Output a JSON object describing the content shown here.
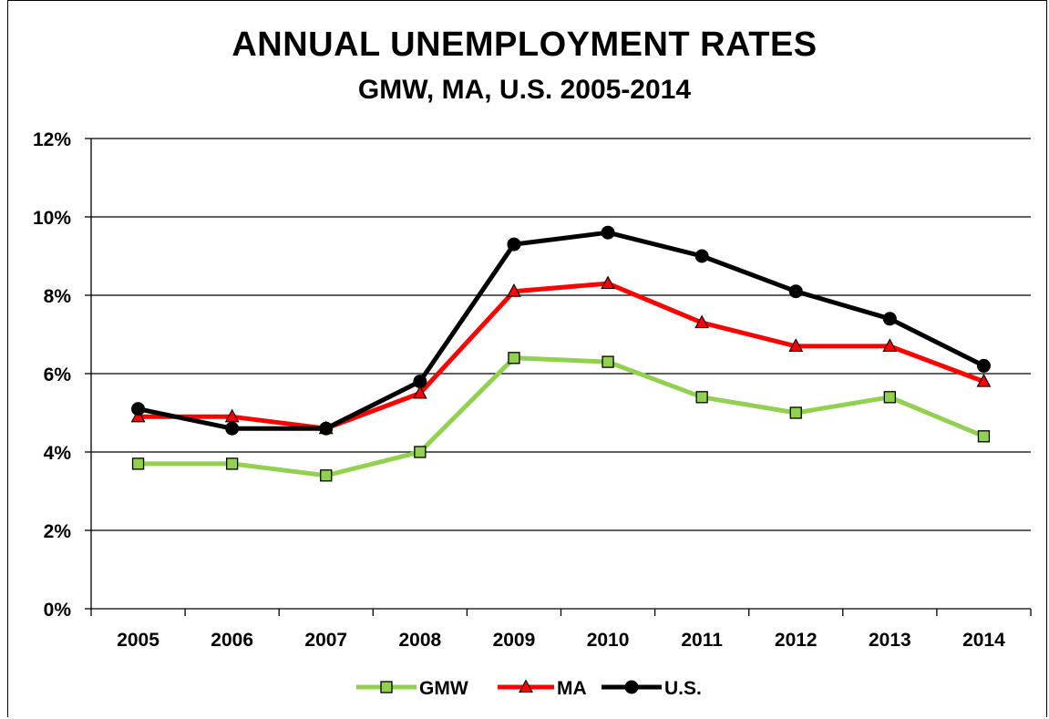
{
  "chart_data": {
    "type": "line",
    "title": "ANNUAL UNEMPLOYMENT RATES",
    "subtitle": "GMW, MA, U.S. 2005-2014",
    "categories": [
      "2005",
      "2006",
      "2007",
      "2008",
      "2009",
      "2010",
      "2011",
      "2012",
      "2013",
      "2014"
    ],
    "ylim": [
      0,
      12
    ],
    "yticks": [
      0,
      2,
      4,
      6,
      8,
      10,
      12
    ],
    "ytick_labels": [
      "0%",
      "2%",
      "4%",
      "6%",
      "8%",
      "10%",
      "12%"
    ],
    "grid": true,
    "legend_position": "bottom",
    "series": [
      {
        "name": "GMW",
        "color": "#92d050",
        "marker": "square",
        "marker_fill": "#92d050",
        "values": [
          3.7,
          3.7,
          3.4,
          4.0,
          6.4,
          6.3,
          5.4,
          5.0,
          5.4,
          4.4
        ]
      },
      {
        "name": "MA",
        "color": "#ff0000",
        "marker": "triangle",
        "marker_fill": "#ff0000",
        "values": [
          4.9,
          4.9,
          4.6,
          5.5,
          8.1,
          8.3,
          7.3,
          6.7,
          6.7,
          5.8
        ]
      },
      {
        "name": "U.S.",
        "color": "#000000",
        "marker": "circle",
        "marker_fill": "#000000",
        "values": [
          5.1,
          4.6,
          4.6,
          5.8,
          9.3,
          9.6,
          9.0,
          8.1,
          7.4,
          6.2
        ]
      }
    ]
  }
}
